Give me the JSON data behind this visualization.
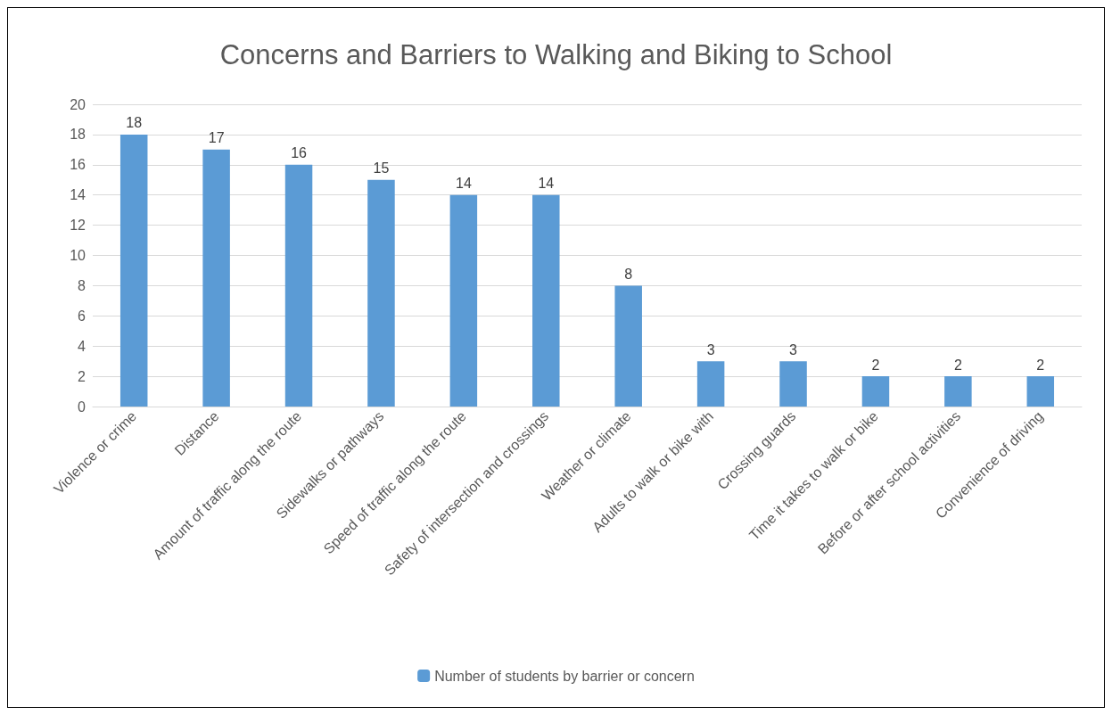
{
  "chart_data": {
    "type": "bar",
    "title": "Concerns and Barriers to Walking and Biking to School",
    "categories": [
      "Violence or crime",
      "Distance",
      "Amount of traffic along the route",
      "Sidewalks or pathways",
      "Speed of traffic along the route",
      "Safety of intersection and crossings",
      "Weather or climate",
      "Adults to walk or bike with",
      "Crossing guards",
      "Time it takes to walk or bike",
      "Before or after school activities",
      "Convenience of driving"
    ],
    "series": [
      {
        "name": "Number of students by barrier or concern",
        "color": "#5b9bd5",
        "values": [
          18,
          17,
          16,
          15,
          14,
          14,
          8,
          3,
          3,
          2,
          2,
          2
        ]
      }
    ],
    "ylim": [
      0,
      20
    ],
    "yticks": [
      0,
      2,
      4,
      6,
      8,
      10,
      12,
      14,
      16,
      18,
      20
    ],
    "grid": "y",
    "legend": "bottom",
    "data_labels": true
  }
}
